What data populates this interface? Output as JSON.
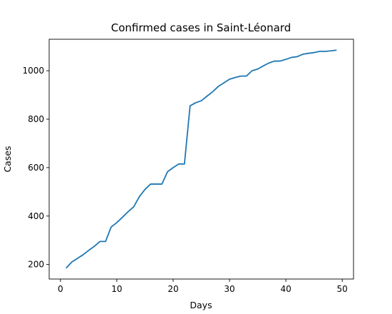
{
  "chart_data": {
    "type": "line",
    "title": "Confirmed cases in Saint-Léonard",
    "xlabel": "Days",
    "ylabel": "Cases",
    "xlim": [
      -2,
      52
    ],
    "ylim": [
      140,
      1130
    ],
    "xticks": [
      0,
      10,
      20,
      30,
      40,
      50
    ],
    "yticks": [
      200,
      400,
      600,
      800,
      1000
    ],
    "grid": false,
    "color": "#1f77b4",
    "x": [
      1,
      2,
      3,
      4,
      5,
      6,
      7,
      8,
      9,
      10,
      11,
      12,
      13,
      14,
      15,
      16,
      17,
      18,
      19,
      20,
      21,
      22,
      23,
      24,
      25,
      26,
      27,
      28,
      29,
      30,
      31,
      32,
      33,
      34,
      35,
      36,
      37,
      38,
      39,
      40,
      41,
      42,
      43,
      44,
      45,
      46,
      47,
      48,
      49
    ],
    "values": [
      185,
      210,
      225,
      240,
      258,
      275,
      295,
      295,
      355,
      373,
      395,
      418,
      438,
      480,
      510,
      532,
      532,
      532,
      583,
      600,
      615,
      615,
      855,
      868,
      876,
      895,
      913,
      935,
      950,
      965,
      972,
      978,
      978,
      1000,
      1007,
      1020,
      1032,
      1040,
      1040,
      1047,
      1055,
      1058,
      1068,
      1072,
      1075,
      1080,
      1080,
      1082,
      1085
    ]
  }
}
